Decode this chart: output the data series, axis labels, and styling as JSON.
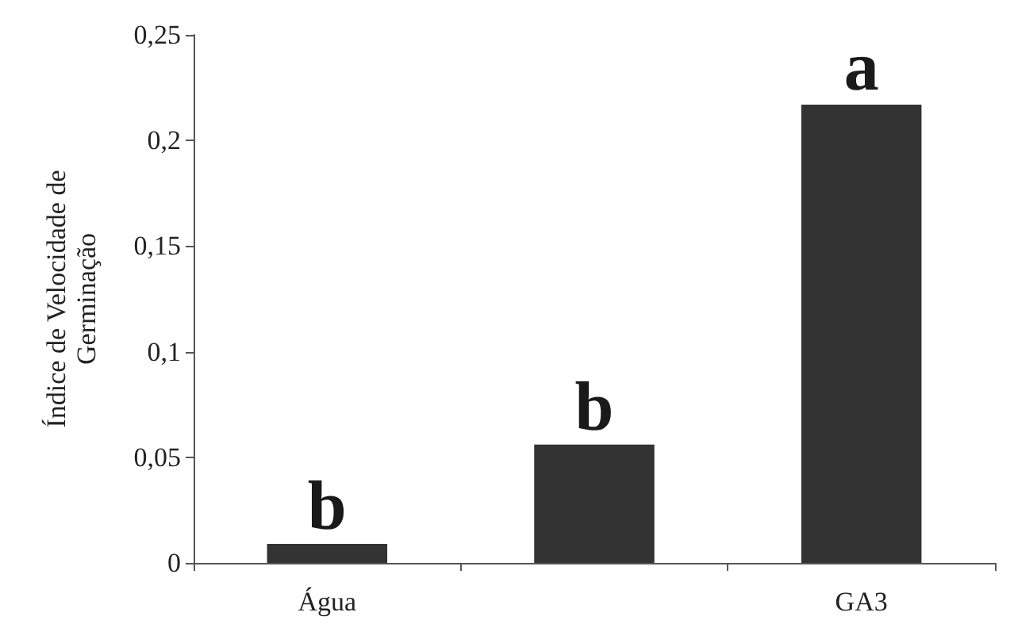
{
  "chart_data": {
    "type": "bar",
    "ylabel": "Índice de Velocidade de\nGerminação",
    "categories": [
      "Água",
      null,
      "GA3"
    ],
    "values": [
      0.009,
      0.056,
      0.217
    ],
    "color": "#333333",
    "value_labels": [
      "b",
      "b",
      "a"
    ],
    "ylim": [
      0,
      0.25
    ],
    "yticks": [
      {
        "value": 0,
        "label": "0"
      },
      {
        "value": 0.05,
        "label": "0,05"
      },
      {
        "value": 0.1,
        "label": "0,1"
      },
      {
        "value": 0.15,
        "label": "0,15"
      },
      {
        "value": 0.2,
        "label": "0,2"
      },
      {
        "value": 0.25,
        "label": "0,25"
      }
    ],
    "grid": false
  }
}
